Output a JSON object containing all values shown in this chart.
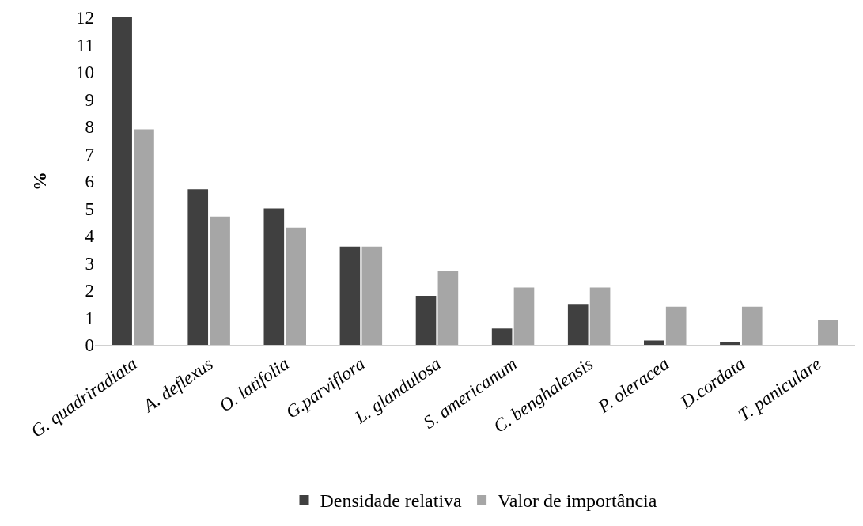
{
  "chart_data": {
    "type": "bar",
    "ylabel": "%",
    "categories": [
      "G. quadriradiata",
      "A. deflexus",
      "O. latifolia",
      "G.parviflora",
      "L. glandulosa",
      "S. americanum",
      "C. benghalensis",
      "P. oleracea",
      "D.cordata",
      "T. paniculare"
    ],
    "series": [
      {
        "name": "Densidade relativa",
        "color": "#404040",
        "values": [
          12.0,
          5.7,
          5.0,
          3.6,
          1.8,
          0.6,
          1.5,
          0.16,
          0.1,
          0
        ]
      },
      {
        "name": "Valor de importância",
        "color": "#a6a6a6",
        "values": [
          7.9,
          4.7,
          4.3,
          3.6,
          2.7,
          2.1,
          2.1,
          1.4,
          1.4,
          0.9
        ]
      }
    ],
    "ylim": [
      0,
      12
    ],
    "yticks": [
      0,
      1,
      2,
      3,
      4,
      5,
      6,
      7,
      8,
      9,
      10,
      11,
      12
    ],
    "legend": "bottom"
  }
}
